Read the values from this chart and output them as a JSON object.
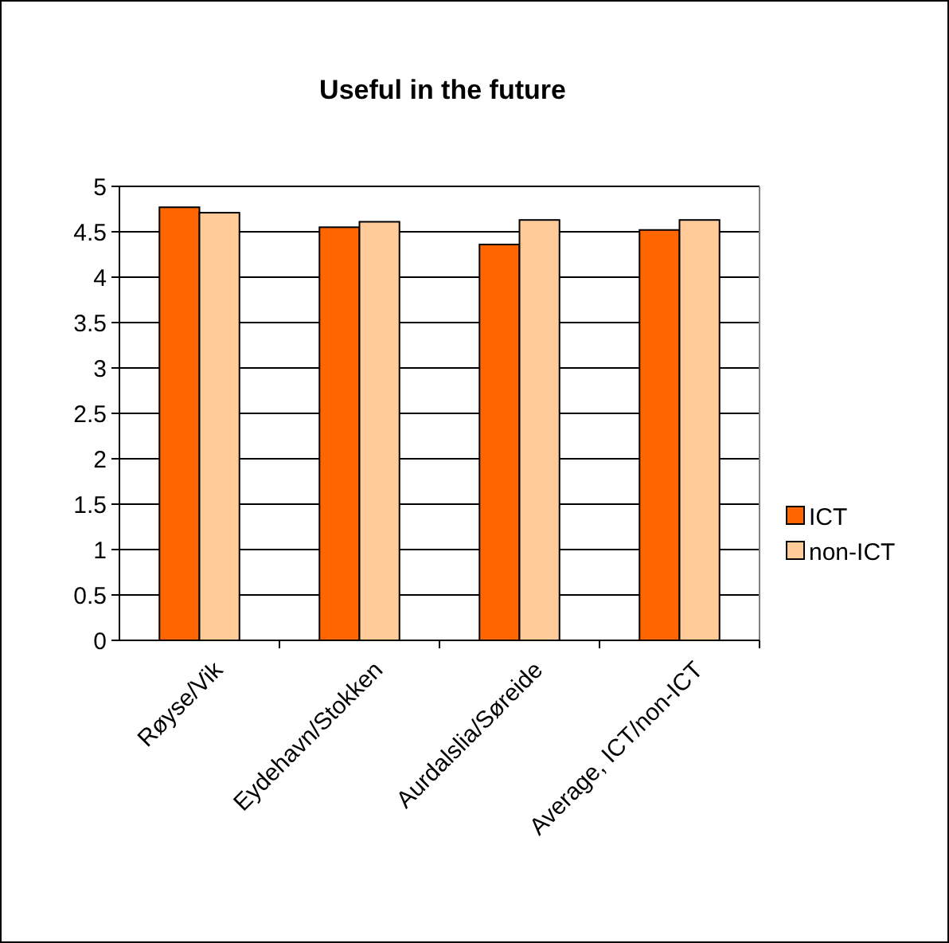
{
  "chart_data": {
    "type": "bar",
    "title": "Useful in the future",
    "categories": [
      "Røyse/Vik",
      "Eydehavn/Stokken",
      "Aurdalslia/Søreide",
      "Average, ICT/non-ICT"
    ],
    "series": [
      {
        "name": "ICT",
        "color": "#ff6600",
        "values": [
          4.77,
          4.55,
          4.36,
          4.52
        ]
      },
      {
        "name": "non-ICT",
        "color": "#ffcc99",
        "values": [
          4.71,
          4.61,
          4.63,
          4.63
        ]
      }
    ],
    "ylim": [
      0,
      5
    ],
    "yticks": [
      0,
      0.5,
      1,
      1.5,
      2,
      2.5,
      3,
      3.5,
      4,
      4.5,
      5
    ],
    "grid": "y",
    "legend": "right"
  }
}
